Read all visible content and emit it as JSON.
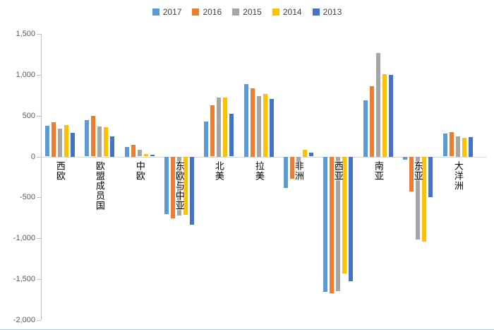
{
  "chart_data": {
    "type": "bar",
    "title": "",
    "categories": [
      "西欧",
      "欧盟成员国",
      "中欧",
      "东欧与中亚",
      "北美",
      "拉美",
      "非洲",
      "西亚",
      "南亚",
      "东亚",
      "大洋洲"
    ],
    "series": [
      {
        "name": "2017",
        "color": "#5B9BD5",
        "values": [
          375,
          445,
          120,
          -700,
          430,
          890,
          -380,
          -1650,
          690,
          -35,
          280
        ]
      },
      {
        "name": "2016",
        "color": "#ED7D31",
        "values": [
          420,
          495,
          145,
          -755,
          625,
          835,
          -265,
          -1665,
          860,
          -420,
          295
        ]
      },
      {
        "name": "2015",
        "color": "#A5A5A5",
        "values": [
          345,
          370,
          80,
          -720,
          725,
          740,
          -70,
          -1640,
          1270,
          -1010,
          250
        ]
      },
      {
        "name": "2014",
        "color": "#FFC000",
        "values": [
          385,
          355,
          30,
          -710,
          725,
          765,
          85,
          -1430,
          1010,
          -1040,
          230
        ]
      },
      {
        "name": "2013",
        "color": "#4472C4",
        "values": [
          290,
          250,
          20,
          -830,
          520,
          705,
          45,
          -1520,
          1000,
          -490,
          240
        ]
      }
    ],
    "ylim": [
      -2000,
      1500
    ],
    "yticks": [
      1500,
      1000,
      500,
      0,
      -500,
      -1000,
      -1500,
      -2000
    ],
    "ytick_labels": [
      "1,500",
      "1,000",
      "500",
      "0",
      "-500",
      "-1,000",
      "-1,500",
      "-2,000"
    ],
    "legend_position": "top",
    "grid": false,
    "xlabel": "",
    "ylabel": ""
  },
  "colors": {
    "axis_line": "#BFBFBF",
    "zero_line": "#D9D9D9",
    "tick_text": "#595959",
    "legend_text": "#404040",
    "category_text": "#000000",
    "background": "#FFFFFF"
  }
}
